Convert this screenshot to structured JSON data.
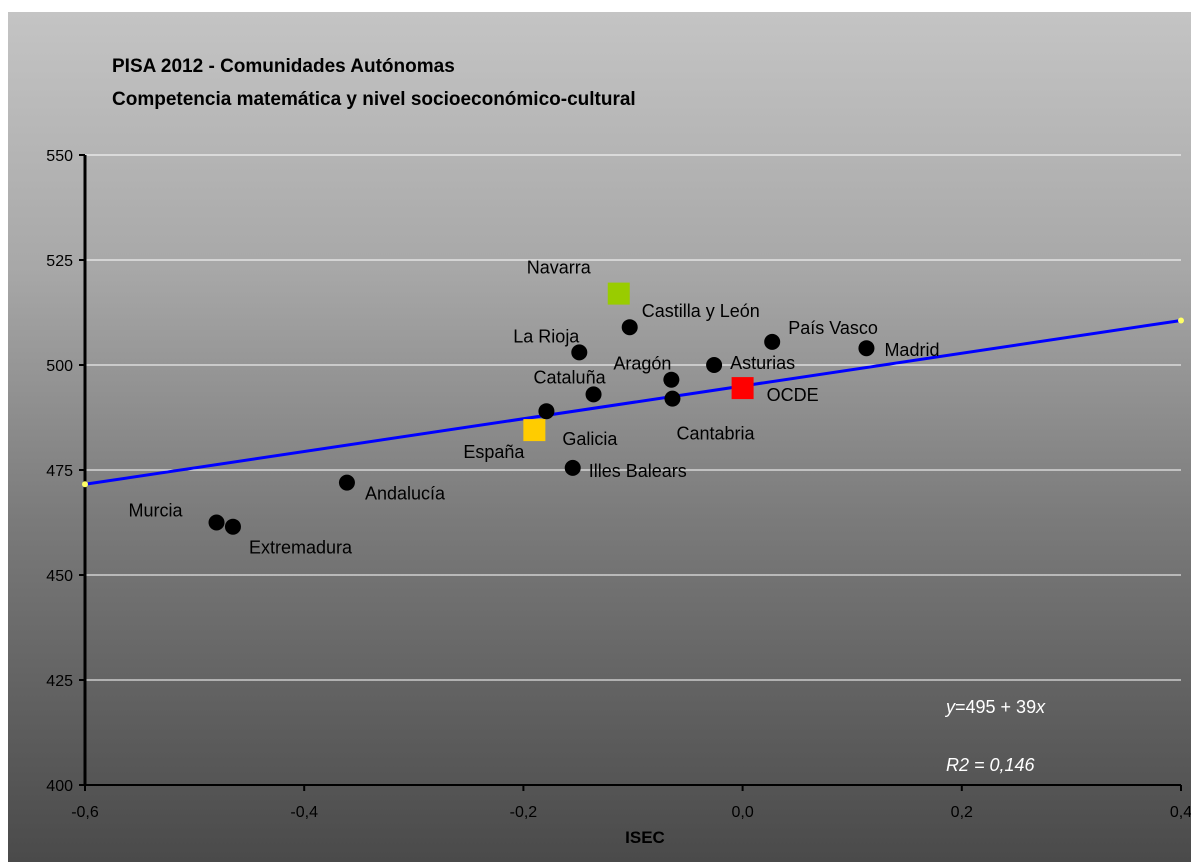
{
  "chart_data": {
    "type": "scatter",
    "title": "PISA 2012 - Comunidades Autónomas",
    "subtitle": "Competencia matemática y nivel socioeconómico-cultural",
    "xlabel": "ISEC",
    "ylabel": "",
    "xlim": [
      -0.6,
      0.4
    ],
    "ylim": [
      400,
      550
    ],
    "xticks": [
      "-0,6",
      "-0,4",
      "-0,2",
      "0,0",
      "0,2",
      "0,4"
    ],
    "yticks": [
      "400",
      "425",
      "450",
      "475",
      "500",
      "525",
      "550"
    ],
    "grid": "horizontal",
    "points": [
      {
        "label": "Navarra",
        "x": -0.113,
        "y": 517,
        "marker": "square",
        "color": "#99cc00"
      },
      {
        "label": "Castilla y León",
        "x": -0.103,
        "y": 509,
        "marker": "circle",
        "color": "#000000"
      },
      {
        "label": "País Vasco",
        "x": 0.027,
        "y": 505.5,
        "marker": "circle",
        "color": "#000000"
      },
      {
        "label": "Madrid",
        "x": 0.113,
        "y": 504,
        "marker": "circle",
        "color": "#000000"
      },
      {
        "label": "La Rioja",
        "x": -0.149,
        "y": 503,
        "marker": "circle",
        "color": "#000000"
      },
      {
        "label": "Asturias",
        "x": -0.026,
        "y": 500,
        "marker": "circle",
        "color": "#000000"
      },
      {
        "label": "Aragón",
        "x": -0.065,
        "y": 496.5,
        "marker": "circle",
        "color": "#000000"
      },
      {
        "label": "OCDE",
        "x": 0.0,
        "y": 494.5,
        "marker": "square",
        "color": "#ff0000"
      },
      {
        "label": "Cataluña",
        "x": -0.136,
        "y": 493,
        "marker": "circle",
        "color": "#000000"
      },
      {
        "label": "Cantabria",
        "x": -0.064,
        "y": 492,
        "marker": "circle",
        "color": "#000000"
      },
      {
        "label": "Galicia",
        "x": -0.179,
        "y": 489,
        "marker": "circle",
        "color": "#000000"
      },
      {
        "label": "España",
        "x": -0.19,
        "y": 484.5,
        "marker": "square",
        "color": "#ffcc00"
      },
      {
        "label": "Illes Balears",
        "x": -0.155,
        "y": 475.5,
        "marker": "circle",
        "color": "#000000"
      },
      {
        "label": "Andalucía",
        "x": -0.361,
        "y": 472,
        "marker": "circle",
        "color": "#000000"
      },
      {
        "label": "Murcia",
        "x": -0.48,
        "y": 462.5,
        "marker": "circle",
        "color": "#000000"
      },
      {
        "label": "Extremadura",
        "x": -0.465,
        "y": 461.5,
        "marker": "circle",
        "color": "#000000"
      }
    ],
    "trendline": {
      "intercept": 495,
      "slope": 39,
      "color": "#0000ff"
    },
    "equation": {
      "y": "y",
      "rest": "=495 + 39",
      "x": "x"
    },
    "r2": "R2 = 0,146"
  }
}
